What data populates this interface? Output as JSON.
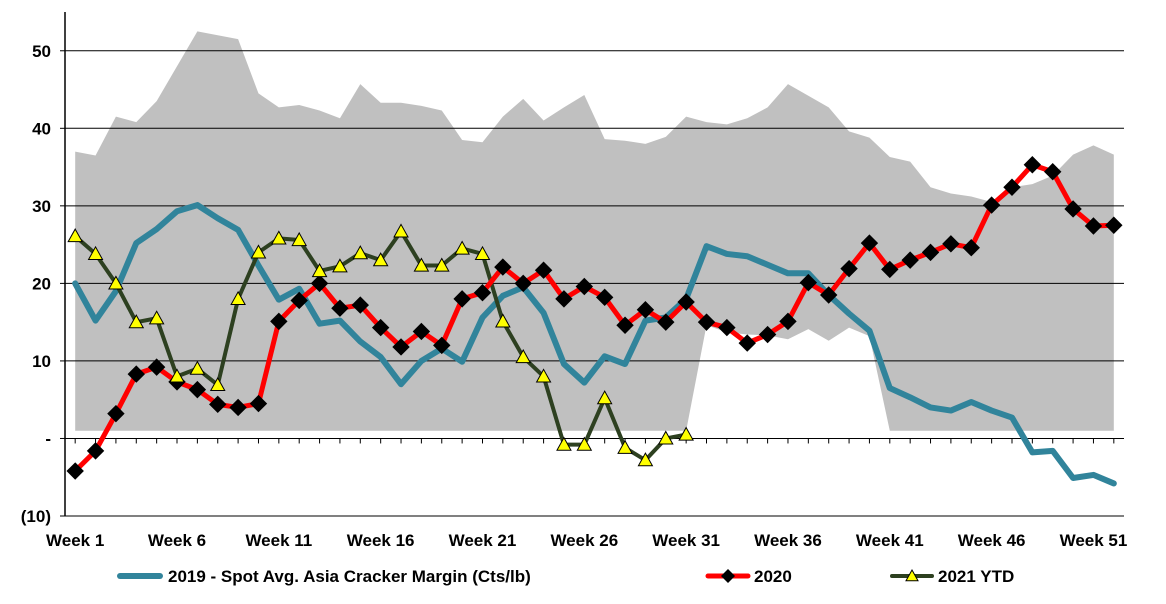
{
  "chart_data": {
    "type": "line",
    "x": [
      1,
      2,
      3,
      4,
      5,
      6,
      7,
      8,
      9,
      10,
      11,
      12,
      13,
      14,
      15,
      16,
      17,
      18,
      19,
      20,
      21,
      22,
      23,
      24,
      25,
      26,
      27,
      28,
      29,
      30,
      31,
      32,
      33,
      34,
      35,
      36,
      37,
      38,
      39,
      40,
      41,
      42,
      43,
      44,
      45,
      46,
      47,
      48,
      49,
      50,
      51,
      52
    ],
    "x_tick_labels": [
      {
        "x": 1,
        "label": "Week 1"
      },
      {
        "x": 6,
        "label": "Week 6"
      },
      {
        "x": 11,
        "label": "Week 11"
      },
      {
        "x": 16,
        "label": "Week 16"
      },
      {
        "x": 21,
        "label": "Week 21"
      },
      {
        "x": 26,
        "label": "Week 26"
      },
      {
        "x": 31,
        "label": "Week 31"
      },
      {
        "x": 36,
        "label": "Week 36"
      },
      {
        "x": 41,
        "label": "Week 41"
      },
      {
        "x": 46,
        "label": "Week 46"
      },
      {
        "x": 51,
        "label": "Week 51"
      }
    ],
    "y_tick_labels": [
      {
        "y": 50,
        "label": "50"
      },
      {
        "y": 40,
        "label": "40"
      },
      {
        "y": 30,
        "label": "30"
      },
      {
        "y": 20,
        "label": "20"
      },
      {
        "y": 10,
        "label": "10"
      },
      {
        "y": 0,
        "label": "-"
      },
      {
        "y": -10,
        "label": "(10)"
      }
    ],
    "ylim": [
      -10,
      55
    ],
    "xlim": [
      0.5,
      52.5
    ],
    "grid": true,
    "legend_position": "bottom",
    "range_band": {
      "color": "#c0c0c0",
      "upper": [
        37,
        36.5,
        41.5,
        40.8,
        43.5,
        48,
        52.5,
        52,
        51.5,
        44.5,
        42.7,
        43,
        42.3,
        41.3,
        45.7,
        43.3,
        43.3,
        42.9,
        42.3,
        38.5,
        38.2,
        41.5,
        43.8,
        41,
        42.7,
        44.3,
        38.6,
        38.4,
        38,
        38.9,
        41.5,
        40.8,
        40.5,
        41.3,
        42.7,
        45.7,
        44.2,
        42.7,
        39.6,
        38.8,
        36.3,
        35.7,
        32.4,
        31.6,
        31.2,
        30.5,
        32.4,
        32.8,
        33.9,
        36.6,
        37.8,
        36.6
      ],
      "lower": [
        1,
        1,
        1,
        1,
        1,
        1,
        1,
        1,
        1,
        1,
        1,
        1,
        1,
        1,
        1,
        1,
        1,
        1,
        1,
        1,
        1,
        1,
        1,
        1,
        1,
        1,
        1,
        1,
        1,
        1,
        1,
        14.6,
        13.7,
        13.4,
        13.3,
        12.8,
        14.1,
        12.6,
        14.3,
        13.2,
        1,
        1,
        1,
        1,
        1,
        1,
        1,
        1,
        1,
        1,
        1,
        1
      ]
    },
    "series": [
      {
        "name": "2019 - Spot Avg. Asia Cracker Margin (Cts/lb)",
        "color": "#31849b",
        "marker": "none",
        "values": [
          20,
          15.2,
          19,
          25.2,
          27,
          29.3,
          30.1,
          28.4,
          26.9,
          22.3,
          17.9,
          19.3,
          14.8,
          15.2,
          12.5,
          10.5,
          7,
          10,
          11.6,
          9.9,
          15.6,
          18.4,
          19.5,
          16.2,
          9.6,
          7.2,
          10.6,
          9.6,
          15.2,
          15.6,
          18,
          24.8,
          23.8,
          23.5,
          22.4,
          21.3,
          21.3,
          18.5,
          16.1,
          13.9,
          6.5,
          5.3,
          4,
          3.6,
          4.7,
          3.6,
          2.7,
          -1.8,
          -1.6,
          -5.1,
          -4.7,
          -5.8
        ]
      },
      {
        "name": "2020",
        "color": "#ff0000",
        "marker": "diamond",
        "values": [
          -4.2,
          -1.6,
          3.2,
          8.3,
          9.2,
          7.3,
          6.3,
          4.4,
          4,
          4.5,
          15.1,
          17.8,
          20,
          16.8,
          17.2,
          14.3,
          11.8,
          13.8,
          12,
          18,
          18.8,
          22.1,
          20,
          21.7,
          18,
          19.6,
          18.2,
          14.6,
          16.6,
          15,
          17.6,
          15,
          14.3,
          12.3,
          13.4,
          15.1,
          20.1,
          18.5,
          21.9,
          25.2,
          21.8,
          23,
          24,
          25.1,
          24.6,
          30.1,
          32.4,
          35.3,
          34.4,
          29.6,
          27.4,
          27.5
        ]
      },
      {
        "name": "2021 YTD",
        "color": "#2d4020",
        "marker": "triangle",
        "values": [
          26.1,
          23.8,
          20,
          15,
          15.5,
          8,
          9,
          6.9,
          18,
          24,
          25.8,
          25.6,
          21.6,
          22.2,
          23.9,
          23,
          26.7,
          22.3,
          22.3,
          24.5,
          23.8,
          15.1,
          10.5,
          8,
          -0.8,
          -0.8,
          5.2,
          -1.2,
          -2.8,
          0,
          0.5,
          null,
          null,
          null,
          null,
          null,
          null,
          null,
          null,
          null,
          null,
          null,
          null,
          null,
          null,
          null,
          null,
          null,
          null,
          null,
          null,
          null
        ]
      }
    ]
  }
}
